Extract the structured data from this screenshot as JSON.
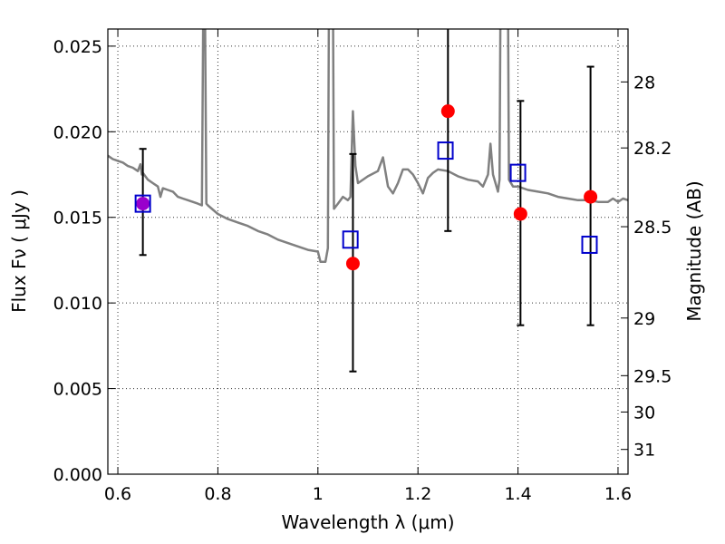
{
  "chart_data": {
    "type": "scatter",
    "xlabel": "Wavelength  λ (μm)",
    "ylabel": "Flux  Fν  ( μJy )",
    "ylabel_right": "Magnitude (AB)",
    "xlim": [
      0.58,
      1.62
    ],
    "ylim": [
      0.0,
      0.026
    ],
    "x_ticks": [
      0.6,
      0.8,
      1.0,
      1.2,
      1.4,
      1.6
    ],
    "x_tick_labels": [
      "0.6",
      "0.8",
      "1",
      "1.2",
      "1.4",
      "1.6"
    ],
    "y_ticks": [
      0.0,
      0.005,
      0.01,
      0.015,
      0.02,
      0.025
    ],
    "y_tick_labels": [
      "0.000",
      "0.005",
      "0.010",
      "0.015",
      "0.020",
      "0.025"
    ],
    "right_ticks": [
      {
        "label": "28",
        "mag": 28.0
      },
      {
        "label": "28.2",
        "mag": 28.2
      },
      {
        "label": "28.5",
        "mag": 28.5
      },
      {
        "label": "29",
        "mag": 29.0
      },
      {
        "label": "29.5",
        "mag": 29.5
      },
      {
        "label": "30",
        "mag": 30.0
      },
      {
        "label": "31",
        "mag": 31.0
      }
    ],
    "grid": true,
    "colors": {
      "spectrum": "#808080",
      "observed": "#ff0000",
      "model": "#0000cc",
      "errorbar": "#000000",
      "overlap": "#9900cc"
    },
    "series": [
      {
        "role": "spectrum",
        "kind": "line",
        "points": [
          [
            0.58,
            0.0186
          ],
          [
            0.59,
            0.0184
          ],
          [
            0.6,
            0.0183
          ],
          [
            0.61,
            0.0182
          ],
          [
            0.62,
            0.018
          ],
          [
            0.63,
            0.0179
          ],
          [
            0.64,
            0.0177
          ],
          [
            0.645,
            0.0181
          ],
          [
            0.648,
            0.0175
          ],
          [
            0.65,
            0.0176
          ],
          [
            0.66,
            0.0172
          ],
          [
            0.67,
            0.017
          ],
          [
            0.68,
            0.0168
          ],
          [
            0.685,
            0.0162
          ],
          [
            0.69,
            0.0167
          ],
          [
            0.7,
            0.0166
          ],
          [
            0.71,
            0.0165
          ],
          [
            0.72,
            0.0162
          ],
          [
            0.73,
            0.0161
          ],
          [
            0.74,
            0.016
          ],
          [
            0.75,
            0.0159
          ],
          [
            0.76,
            0.0158
          ],
          [
            0.768,
            0.0157
          ],
          [
            0.771,
            0.028
          ],
          [
            0.774,
            0.028
          ],
          [
            0.777,
            0.0158
          ],
          [
            0.78,
            0.0157
          ],
          [
            0.8,
            0.0152
          ],
          [
            0.82,
            0.0149
          ],
          [
            0.84,
            0.0147
          ],
          [
            0.86,
            0.0145
          ],
          [
            0.88,
            0.0142
          ],
          [
            0.9,
            0.014
          ],
          [
            0.92,
            0.0137
          ],
          [
            0.94,
            0.0135
          ],
          [
            0.96,
            0.0133
          ],
          [
            0.98,
            0.0131
          ],
          [
            1.0,
            0.013
          ],
          [
            1.005,
            0.0124
          ],
          [
            1.015,
            0.0124
          ],
          [
            1.02,
            0.0132
          ],
          [
            1.022,
            0.028
          ],
          [
            1.03,
            0.028
          ],
          [
            1.032,
            0.0155
          ],
          [
            1.04,
            0.0158
          ],
          [
            1.05,
            0.0162
          ],
          [
            1.06,
            0.016
          ],
          [
            1.065,
            0.0162
          ],
          [
            1.07,
            0.0212
          ],
          [
            1.075,
            0.018
          ],
          [
            1.08,
            0.017
          ],
          [
            1.1,
            0.0174
          ],
          [
            1.12,
            0.0177
          ],
          [
            1.13,
            0.0185
          ],
          [
            1.14,
            0.0168
          ],
          [
            1.15,
            0.0164
          ],
          [
            1.16,
            0.017
          ],
          [
            1.17,
            0.0178
          ],
          [
            1.18,
            0.0178
          ],
          [
            1.19,
            0.0175
          ],
          [
            1.2,
            0.017
          ],
          [
            1.21,
            0.0164
          ],
          [
            1.22,
            0.0173
          ],
          [
            1.23,
            0.0176
          ],
          [
            1.24,
            0.0178
          ],
          [
            1.26,
            0.0177
          ],
          [
            1.28,
            0.0174
          ],
          [
            1.3,
            0.0172
          ],
          [
            1.32,
            0.0171
          ],
          [
            1.33,
            0.0168
          ],
          [
            1.34,
            0.0175
          ],
          [
            1.345,
            0.0193
          ],
          [
            1.35,
            0.0175
          ],
          [
            1.36,
            0.0165
          ],
          [
            1.363,
            0.0172
          ],
          [
            1.365,
            0.028
          ],
          [
            1.38,
            0.028
          ],
          [
            1.382,
            0.0172
          ],
          [
            1.39,
            0.0168
          ],
          [
            1.4,
            0.0168
          ],
          [
            1.42,
            0.0166
          ],
          [
            1.44,
            0.0165
          ],
          [
            1.46,
            0.0164
          ],
          [
            1.48,
            0.0162
          ],
          [
            1.5,
            0.0161
          ],
          [
            1.52,
            0.016
          ],
          [
            1.54,
            0.016
          ],
          [
            1.56,
            0.0159
          ],
          [
            1.58,
            0.0159
          ],
          [
            1.59,
            0.0161
          ],
          [
            1.6,
            0.0159
          ],
          [
            1.61,
            0.0161
          ],
          [
            1.62,
            0.016
          ]
        ]
      },
      {
        "role": "observed",
        "kind": "scatter",
        "marker": "circle",
        "x": [
          0.65,
          1.07,
          1.26,
          1.405,
          1.545
        ],
        "y": [
          0.0158,
          0.0123,
          0.0212,
          0.0152,
          0.0162
        ],
        "yerr_low": [
          0.0128,
          0.006,
          0.0142,
          0.0087,
          0.0087
        ],
        "yerr_high": [
          0.019,
          0.0187,
          0.0265,
          0.0218,
          0.0238
        ]
      },
      {
        "role": "model",
        "kind": "scatter",
        "marker": "square",
        "x": [
          0.65,
          1.065,
          1.255,
          1.4,
          1.543
        ],
        "y": [
          0.0158,
          0.0137,
          0.0189,
          0.0176,
          0.0134
        ]
      }
    ]
  }
}
